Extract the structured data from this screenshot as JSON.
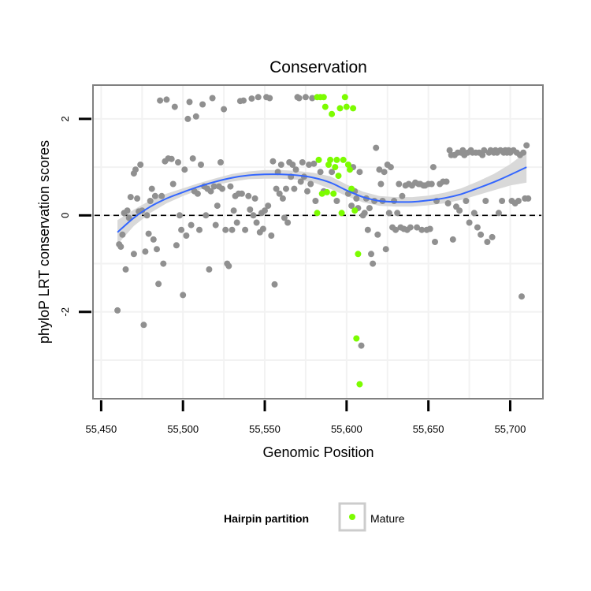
{
  "chart_data": {
    "type": "scatter",
    "title": "Conservation",
    "xlabel": "Genomic Position",
    "ylabel": "phyloP LRT conservation scores",
    "xlim": [
      55445,
      55720
    ],
    "ylim": [
      -3.8,
      2.7
    ],
    "x_ticks": [
      55450,
      55500,
      55550,
      55600,
      55650,
      55700
    ],
    "x_tick_labels": [
      "55,450",
      "55,500",
      "55,550",
      "55,600",
      "55,650",
      "55,700"
    ],
    "y_ticks": [
      -2,
      0,
      2
    ],
    "y_tick_labels": [
      "-2",
      "0",
      "2"
    ],
    "grid": true,
    "reference_line": {
      "y": 0,
      "style": "dashed",
      "color": "#000000"
    },
    "legend": {
      "title": "Hairpin partition",
      "position": "bottom",
      "entries": [
        {
          "label": "Mature",
          "color": "#7cfc00"
        }
      ]
    },
    "colors": {
      "other": "#909090",
      "mature": "#7cfc00",
      "smooth": "#3366ff",
      "band": "#d9d9d9",
      "panel_border": "#808080",
      "grid": "#f2f2f2"
    },
    "series": [
      {
        "name": "",
        "color": "#909090",
        "points": [
          [
            55460,
            -1.97
          ],
          [
            55461,
            -0.6
          ],
          [
            55462,
            -0.65
          ],
          [
            55463,
            -0.4
          ],
          [
            55464,
            0.05
          ],
          [
            55465,
            -1.12
          ],
          [
            55466,
            0.1
          ],
          [
            55467,
            -0.05
          ],
          [
            55468,
            0.38
          ],
          [
            55470,
            -0.8
          ],
          [
            55470,
            0.87
          ],
          [
            55471,
            0.95
          ],
          [
            55472,
            0.35
          ],
          [
            55473,
            0.08
          ],
          [
            55474,
            1.05
          ],
          [
            55475,
            0.1
          ],
          [
            55476,
            -2.27
          ],
          [
            55477,
            -0.75
          ],
          [
            55478,
            0.0
          ],
          [
            55479,
            -0.38
          ],
          [
            55480,
            0.3
          ],
          [
            55481,
            0.55
          ],
          [
            55482,
            -0.5
          ],
          [
            55483,
            0.4
          ],
          [
            55484,
            -0.7
          ],
          [
            55485,
            -1.42
          ],
          [
            55486,
            2.38
          ],
          [
            55487,
            0.4
          ],
          [
            55488,
            -1.0
          ],
          [
            55489,
            1.12
          ],
          [
            55490,
            2.4
          ],
          [
            55491,
            1.18
          ],
          [
            55493,
            1.17
          ],
          [
            55494,
            0.65
          ],
          [
            55495,
            2.25
          ],
          [
            55496,
            -0.62
          ],
          [
            55497,
            1.1
          ],
          [
            55498,
            0.0
          ],
          [
            55499,
            -0.3
          ],
          [
            55500,
            -1.65
          ],
          [
            55501,
            0.95
          ],
          [
            55502,
            -0.42
          ],
          [
            55503,
            2.0
          ],
          [
            55504,
            2.35
          ],
          [
            55505,
            -0.2
          ],
          [
            55506,
            1.18
          ],
          [
            55507,
            0.5
          ],
          [
            55508,
            2.05
          ],
          [
            55509,
            0.45
          ],
          [
            55510,
            -0.3
          ],
          [
            55511,
            1.05
          ],
          [
            55512,
            2.3
          ],
          [
            55513,
            0.6
          ],
          [
            55514,
            0.0
          ],
          [
            55515,
            0.55
          ],
          [
            55516,
            -1.12
          ],
          [
            55517,
            0.5
          ],
          [
            55518,
            2.43
          ],
          [
            55519,
            0.6
          ],
          [
            55520,
            -0.2
          ],
          [
            55521,
            0.2
          ],
          [
            55522,
            0.6
          ],
          [
            55523,
            1.1
          ],
          [
            55524,
            0.55
          ],
          [
            55525,
            2.2
          ],
          [
            55526,
            -0.3
          ],
          [
            55527,
            -1.0
          ],
          [
            55528,
            -1.05
          ],
          [
            55529,
            0.6
          ],
          [
            55530,
            -0.3
          ],
          [
            55531,
            0.1
          ],
          [
            55532,
            0.4
          ],
          [
            55533,
            -0.15
          ],
          [
            55534,
            0.45
          ],
          [
            55535,
            2.37
          ],
          [
            55536,
            0.45
          ],
          [
            55537,
            2.38
          ],
          [
            55538,
            -0.3
          ],
          [
            55540,
            0.4
          ],
          [
            55541,
            0.12
          ],
          [
            55542,
            2.42
          ],
          [
            55543,
            0.0
          ],
          [
            55544,
            0.35
          ],
          [
            55545,
            -0.15
          ],
          [
            55546,
            2.45
          ],
          [
            55547,
            -0.35
          ],
          [
            55548,
            0.05
          ],
          [
            55549,
            -0.28
          ],
          [
            55550,
            0.1
          ],
          [
            55551,
            2.45
          ],
          [
            55552,
            0.2
          ],
          [
            55553,
            2.43
          ],
          [
            55554,
            -0.42
          ],
          [
            55555,
            1.12
          ],
          [
            55556,
            -1.43
          ],
          [
            55557,
            0.55
          ],
          [
            55558,
            0.9
          ],
          [
            55559,
            0.45
          ],
          [
            55560,
            1.05
          ],
          [
            55561,
            0.35
          ],
          [
            55562,
            -0.05
          ],
          [
            55563,
            0.55
          ],
          [
            55564,
            -0.15
          ],
          [
            55565,
            1.1
          ],
          [
            55566,
            0.8
          ],
          [
            55567,
            1.05
          ],
          [
            55568,
            0.55
          ],
          [
            55569,
            0.95
          ],
          [
            55570,
            2.45
          ],
          [
            55571,
            2.43
          ],
          [
            55572,
            0.7
          ],
          [
            55573,
            1.1
          ],
          [
            55574,
            0.8
          ],
          [
            55575,
            2.45
          ],
          [
            55576,
            0.5
          ],
          [
            55577,
            1.05
          ],
          [
            55578,
            0.65
          ],
          [
            55579,
            2.43
          ],
          [
            55580,
            1.07
          ],
          [
            55581,
            0.3
          ],
          [
            55584,
            0.9
          ],
          [
            55586,
            0.5
          ],
          [
            55591,
            0.9
          ],
          [
            55594,
            0.3
          ],
          [
            55601,
            0.45
          ],
          [
            55603,
            0.2
          ],
          [
            55604,
            1.0
          ],
          [
            55605,
            0.5
          ],
          [
            55606,
            0.35
          ],
          [
            55607,
            0.15
          ],
          [
            55608,
            0.9
          ],
          [
            55609,
            -2.7
          ],
          [
            55610,
            0.0
          ],
          [
            55611,
            0.05
          ],
          [
            55612,
            0.35
          ],
          [
            55613,
            -0.3
          ],
          [
            55614,
            0.15
          ],
          [
            55615,
            -0.8
          ],
          [
            55616,
            -1.0
          ],
          [
            55617,
            0.3
          ],
          [
            55618,
            1.4
          ],
          [
            55619,
            -0.4
          ],
          [
            55620,
            0.95
          ],
          [
            55621,
            0.65
          ],
          [
            55622,
            0.3
          ],
          [
            55623,
            0.9
          ],
          [
            55624,
            -0.7
          ],
          [
            55625,
            1.05
          ],
          [
            55626,
            0.05
          ],
          [
            55627,
            1.0
          ],
          [
            55628,
            -0.25
          ],
          [
            55629,
            0.3
          ],
          [
            55630,
            -0.3
          ],
          [
            55631,
            0.05
          ],
          [
            55632,
            0.65
          ],
          [
            55633,
            -0.25
          ],
          [
            55634,
            0.4
          ],
          [
            55635,
            -0.28
          ],
          [
            55636,
            0.62
          ],
          [
            55637,
            -0.3
          ],
          [
            55638,
            0.65
          ],
          [
            55639,
            -0.25
          ],
          [
            55640,
            0.62
          ],
          [
            55642,
            0.68
          ],
          [
            55643,
            -0.25
          ],
          [
            55644,
            0.65
          ],
          [
            55645,
            0.65
          ],
          [
            55646,
            -0.3
          ],
          [
            55647,
            0.62
          ],
          [
            55648,
            0.62
          ],
          [
            55649,
            -0.3
          ],
          [
            55650,
            0.65
          ],
          [
            55651,
            -0.28
          ],
          [
            55652,
            0.65
          ],
          [
            55653,
            1.0
          ],
          [
            55654,
            -0.55
          ],
          [
            55655,
            0.3
          ],
          [
            55657,
            0.65
          ],
          [
            55659,
            0.7
          ],
          [
            55661,
            0.7
          ],
          [
            55662,
            0.25
          ],
          [
            55663,
            1.35
          ],
          [
            55664,
            1.25
          ],
          [
            55665,
            -0.5
          ],
          [
            55666,
            1.25
          ],
          [
            55667,
            0.18
          ],
          [
            55668,
            1.3
          ],
          [
            55669,
            0.1
          ],
          [
            55670,
            1.3
          ],
          [
            55671,
            1.35
          ],
          [
            55672,
            1.25
          ],
          [
            55673,
            0.3
          ],
          [
            55674,
            1.3
          ],
          [
            55675,
            -0.15
          ],
          [
            55676,
            1.35
          ],
          [
            55677,
            1.3
          ],
          [
            55678,
            0.05
          ],
          [
            55679,
            1.3
          ],
          [
            55680,
            -0.25
          ],
          [
            55681,
            1.3
          ],
          [
            55682,
            -0.4
          ],
          [
            55683,
            1.25
          ],
          [
            55684,
            1.35
          ],
          [
            55685,
            0.3
          ],
          [
            55686,
            -0.55
          ],
          [
            55687,
            1.3
          ],
          [
            55688,
            1.35
          ],
          [
            55689,
            -0.45
          ],
          [
            55690,
            1.3
          ],
          [
            55691,
            1.35
          ],
          [
            55692,
            1.3
          ],
          [
            55693,
            0.05
          ],
          [
            55694,
            1.35
          ],
          [
            55695,
            0.3
          ],
          [
            55696,
            1.3
          ],
          [
            55697,
            1.35
          ],
          [
            55698,
            1.3
          ],
          [
            55699,
            1.35
          ],
          [
            55700,
            1.3
          ],
          [
            55701,
            0.3
          ],
          [
            55702,
            1.35
          ],
          [
            55703,
            0.25
          ],
          [
            55704,
            1.3
          ],
          [
            55705,
            0.3
          ],
          [
            55706,
            1.25
          ],
          [
            55707,
            -1.68
          ],
          [
            55708,
            1.3
          ],
          [
            55709,
            0.35
          ],
          [
            55710,
            1.45
          ],
          [
            55711,
            0.35
          ]
        ]
      },
      {
        "name": "Mature",
        "color": "#7cfc00",
        "points": [
          [
            55582,
            2.45
          ],
          [
            55582,
            0.05
          ],
          [
            55583,
            1.15
          ],
          [
            55584,
            2.45
          ],
          [
            55585,
            0.45
          ],
          [
            55586,
            2.45
          ],
          [
            55587,
            2.25
          ],
          [
            55588,
            0.48
          ],
          [
            55589,
            1.05
          ],
          [
            55590,
            1.15
          ],
          [
            55591,
            2.1
          ],
          [
            55592,
            0.45
          ],
          [
            55593,
            1.0
          ],
          [
            55594,
            1.15
          ],
          [
            55595,
            0.82
          ],
          [
            55596,
            2.22
          ],
          [
            55597,
            0.05
          ],
          [
            55598,
            1.15
          ],
          [
            55599,
            2.45
          ],
          [
            55600,
            2.25
          ],
          [
            55601,
            1.05
          ],
          [
            55602,
            0.95
          ],
          [
            55603,
            0.55
          ],
          [
            55604,
            2.22
          ],
          [
            55605,
            0.1
          ],
          [
            55606,
            -2.55
          ],
          [
            55607,
            -0.8
          ],
          [
            55608,
            -3.5
          ]
        ]
      }
    ],
    "smooth": {
      "method": "loess",
      "x": [
        55460,
        55470,
        55480,
        55490,
        55500,
        55510,
        55520,
        55530,
        55540,
        55550,
        55560,
        55570,
        55580,
        55590,
        55600,
        55610,
        55620,
        55630,
        55640,
        55650,
        55660,
        55670,
        55680,
        55690,
        55700,
        55710
      ],
      "y": [
        -0.35,
        -0.05,
        0.18,
        0.35,
        0.48,
        0.6,
        0.7,
        0.78,
        0.83,
        0.85,
        0.85,
        0.83,
        0.78,
        0.68,
        0.52,
        0.38,
        0.3,
        0.28,
        0.28,
        0.31,
        0.36,
        0.44,
        0.56,
        0.69,
        0.84,
        1.0
      ],
      "lower": [
        -0.6,
        -0.22,
        0.05,
        0.25,
        0.4,
        0.53,
        0.63,
        0.7,
        0.75,
        0.76,
        0.76,
        0.74,
        0.68,
        0.55,
        0.4,
        0.27,
        0.2,
        0.18,
        0.18,
        0.21,
        0.25,
        0.32,
        0.42,
        0.52,
        0.62,
        0.68
      ],
      "upper": [
        -0.1,
        0.12,
        0.31,
        0.45,
        0.56,
        0.67,
        0.77,
        0.86,
        0.91,
        0.94,
        0.94,
        0.92,
        0.88,
        0.81,
        0.64,
        0.49,
        0.4,
        0.38,
        0.38,
        0.41,
        0.47,
        0.56,
        0.7,
        0.86,
        1.06,
        1.32
      ]
    }
  }
}
